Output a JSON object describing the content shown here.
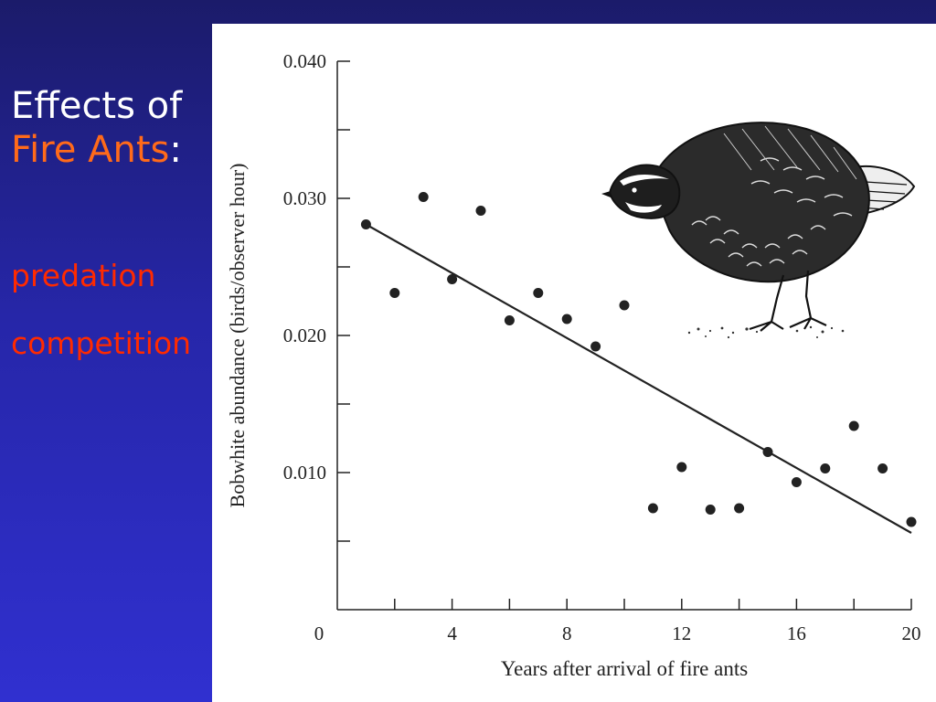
{
  "slide": {
    "title_part1": "Effects of ",
    "title_accent": "Fire Ants",
    "title_part2": ":",
    "bullets": [
      "predation",
      "competition"
    ],
    "colors": {
      "title": "#ffffff",
      "accent": "#ff6a1a",
      "bullets": "#ff2a00",
      "background_top": "#1b1b6a",
      "background_bottom": "#3030d0"
    }
  },
  "illustration": {
    "icon": "bobwhite-quail-drawing"
  },
  "chart_data": {
    "type": "scatter",
    "title": "",
    "xlabel": "Years after arrival of fire ants",
    "ylabel": "Bobwhite abundance (birds/observer hour)",
    "xlim": [
      0,
      20
    ],
    "ylim": [
      0,
      0.04
    ],
    "x_ticks": [
      0,
      4,
      8,
      12,
      16,
      20
    ],
    "x_tick_labels": [
      "0",
      "4",
      "8",
      "12",
      "16",
      "20"
    ],
    "x_minor_ticks": [
      2,
      6,
      10,
      14,
      18
    ],
    "y_ticks": [
      0.01,
      0.02,
      0.03,
      0.04
    ],
    "y_tick_labels": [
      "0.010",
      "0.020",
      "0.030",
      "0.040"
    ],
    "y_minor_ticks": [
      0.005,
      0.015,
      0.025,
      0.035
    ],
    "grid": false,
    "x": [
      1,
      2,
      3,
      4,
      5,
      6,
      7,
      8,
      9,
      10,
      11,
      12,
      13,
      14,
      15,
      16,
      17,
      18,
      19,
      20
    ],
    "y": [
      0.0281,
      0.0231,
      0.0301,
      0.0241,
      0.0291,
      0.0211,
      0.0231,
      0.0212,
      0.0192,
      0.0222,
      0.0074,
      0.0104,
      0.0073,
      0.0074,
      0.0115,
      0.0093,
      0.0103,
      0.0134,
      0.0103,
      0.0064
    ],
    "trend_line": {
      "x": [
        1,
        20
      ],
      "y": [
        0.0281,
        0.0056
      ]
    }
  }
}
